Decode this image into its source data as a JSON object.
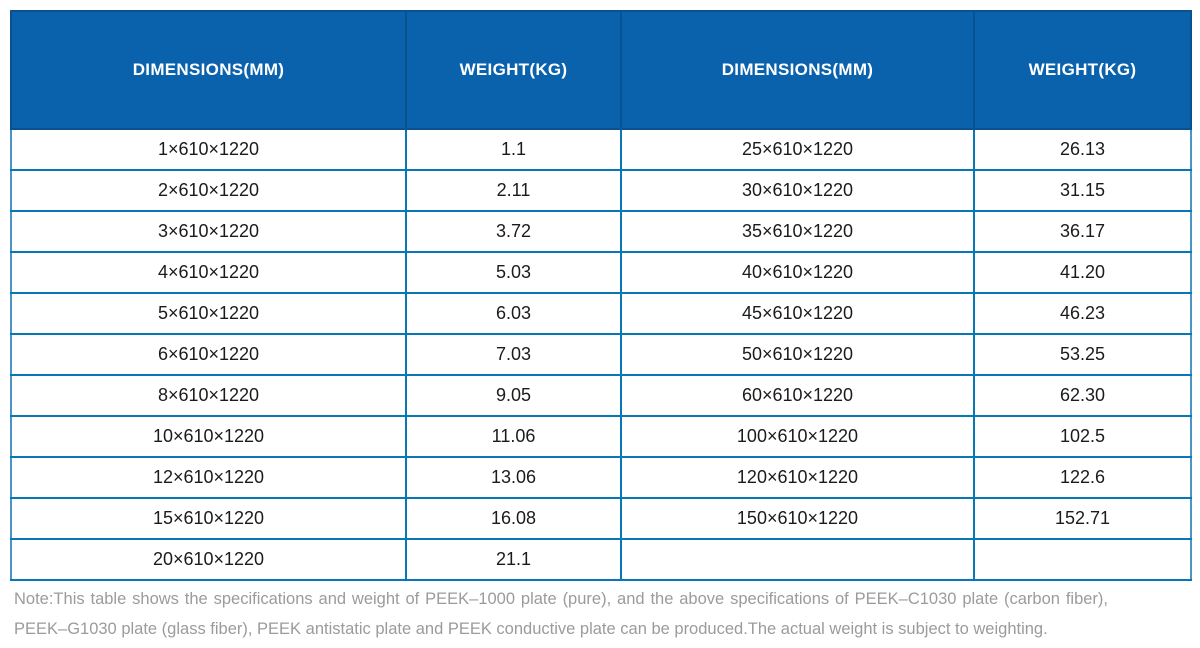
{
  "table": {
    "headers": [
      "DIMENSIONS(MM)",
      "WEIGHT(KG)",
      "DIMENSIONS(MM)",
      "WEIGHT(KG)"
    ],
    "rows": [
      [
        "1×610×1220",
        "1.1",
        "25×610×1220",
        "26.13"
      ],
      [
        "2×610×1220",
        "2.11",
        "30×610×1220",
        "31.15"
      ],
      [
        "3×610×1220",
        "3.72",
        "35×610×1220",
        "36.17"
      ],
      [
        "4×610×1220",
        "5.03",
        "40×610×1220",
        "41.20"
      ],
      [
        "5×610×1220",
        "6.03",
        "45×610×1220",
        "46.23"
      ],
      [
        "6×610×1220",
        "7.03",
        "50×610×1220",
        "53.25"
      ],
      [
        "8×610×1220",
        "9.05",
        "60×610×1220",
        "62.30"
      ],
      [
        "10×610×1220",
        "11.06",
        "100×610×1220",
        "102.5"
      ],
      [
        "12×610×1220",
        "13.06",
        "120×610×1220",
        "122.6"
      ],
      [
        "15×610×1220",
        "16.08",
        "150×610×1220",
        "152.71"
      ],
      [
        "20×610×1220",
        "21.1",
        "",
        ""
      ]
    ]
  },
  "note": {
    "line1": "Note:This table shows the specifications and weight of PEEK–1000 plate (pure), and the above specifications of PEEK–C1030 plate (carbon fiber),",
    "line2": "PEEK–G1030 plate (glass fiber), PEEK antistatic plate and PEEK conductive plate can be produced.The actual weight is subject to weighting."
  },
  "colors": {
    "header_background": "#0b62ac",
    "header_border": "#09528f",
    "header_text": "#ffffff",
    "grid_line": "#0877b8",
    "outer_side_border": "#4a94c8",
    "cell_text": "#1b1b1b",
    "note_text": "#9b9b9b",
    "page_background": "#ffffff"
  }
}
